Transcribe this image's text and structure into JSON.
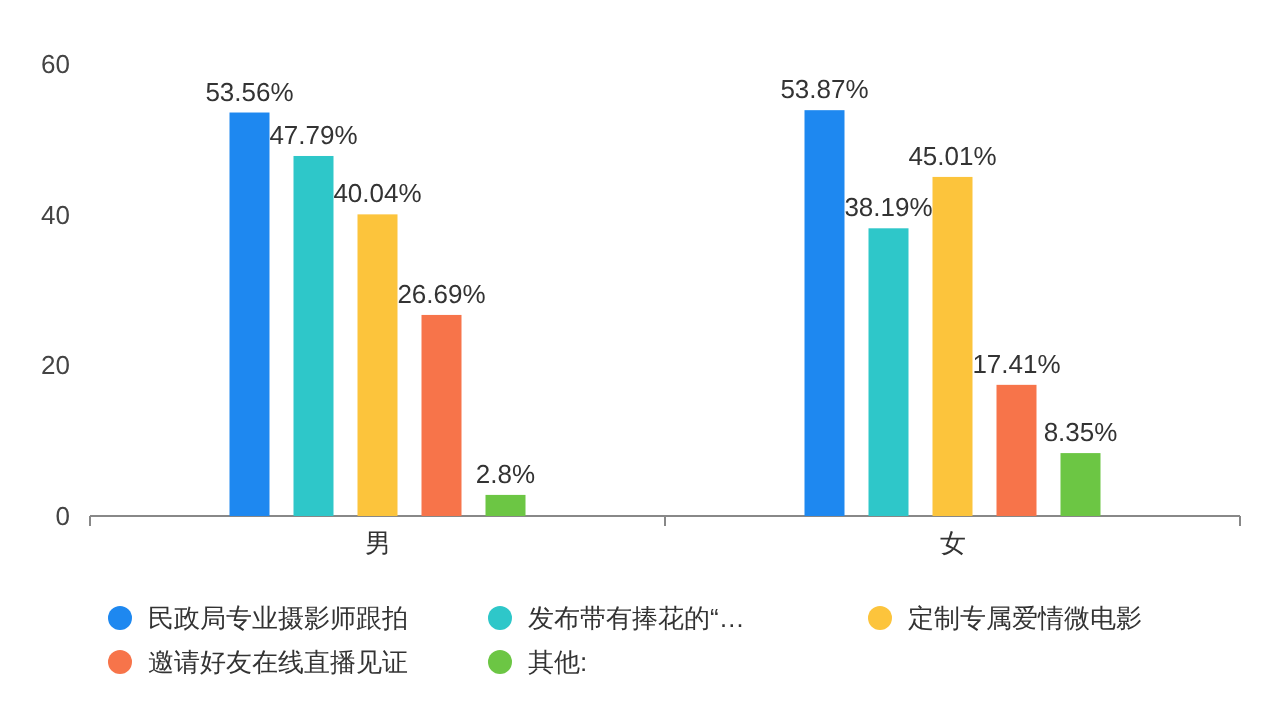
{
  "chart_data": {
    "type": "bar",
    "categories": [
      "男",
      "女"
    ],
    "ylim": [
      0,
      60
    ],
    "yticks": [
      0,
      20,
      40,
      60
    ],
    "grid": false,
    "legend": "bottom",
    "data_labels": false,
    "series": [
      {
        "name": "民政局专业摄影师跟拍",
        "color": "#1e88f0",
        "values": [
          53.56,
          53.87
        ],
        "value_labels": [
          "53.56%",
          "53.87%"
        ]
      },
      {
        "name": "发布带有捧花的“…",
        "color": "#2ec7c9",
        "values": [
          47.79,
          38.19
        ],
        "value_labels": [
          "47.79%",
          "38.19%"
        ]
      },
      {
        "name": "定制专属爱情微电影",
        "color": "#fcc43c",
        "values": [
          40.04,
          45.01
        ],
        "value_labels": [
          "40.04%",
          "45.01%"
        ]
      },
      {
        "name": "邀请好友在线直播见证",
        "color": "#f7744a",
        "values": [
          26.69,
          17.41
        ],
        "value_labels": [
          "26.69%",
          "17.41%"
        ]
      },
      {
        "name": "其他:",
        "color": "#6cc644",
        "values": [
          2.8,
          8.35
        ],
        "value_labels": [
          "2.8%",
          "8.35%"
        ]
      }
    ]
  }
}
